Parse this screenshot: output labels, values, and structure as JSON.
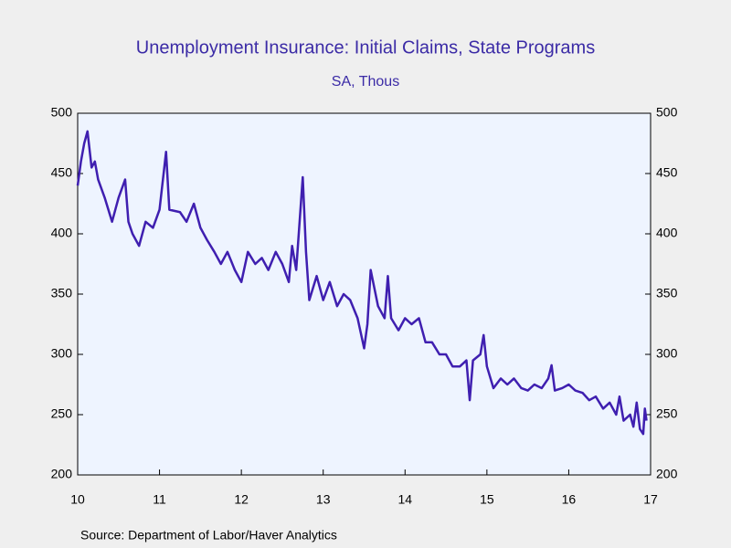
{
  "chart_data": {
    "type": "line",
    "title": "Unemployment Insurance: Initial Claims, State Programs",
    "subtitle": "SA, Thous",
    "source": "Source:  Department of Labor/Haver Analytics",
    "x": [
      10.0,
      10.04,
      10.08,
      10.12,
      10.17,
      10.21,
      10.25,
      10.33,
      10.42,
      10.5,
      10.58,
      10.62,
      10.67,
      10.75,
      10.83,
      10.92,
      11.0,
      11.08,
      11.12,
      11.25,
      11.33,
      11.42,
      11.5,
      11.58,
      11.67,
      11.75,
      11.83,
      11.92,
      12.0,
      12.08,
      12.17,
      12.25,
      12.33,
      12.42,
      12.5,
      12.58,
      12.62,
      12.67,
      12.75,
      12.79,
      12.83,
      12.92,
      13.0,
      13.08,
      13.17,
      13.25,
      13.33,
      13.42,
      13.5,
      13.54,
      13.58,
      13.67,
      13.75,
      13.79,
      13.83,
      13.92,
      14.0,
      14.08,
      14.17,
      14.25,
      14.33,
      14.42,
      14.5,
      14.58,
      14.67,
      14.75,
      14.79,
      14.83,
      14.92,
      14.96,
      15.0,
      15.08,
      15.17,
      15.25,
      15.33,
      15.42,
      15.5,
      15.58,
      15.67,
      15.75,
      15.79,
      15.83,
      15.92,
      16.0,
      16.08,
      16.17,
      16.25,
      16.33,
      16.42,
      16.5,
      16.58,
      16.62,
      16.67,
      16.75,
      16.79,
      16.83,
      16.87,
      16.91,
      16.93,
      16.95
    ],
    "series": [
      {
        "name": "Initial Claims",
        "color": "#3f1fb0",
        "values": [
          440,
          460,
          475,
          485,
          455,
          460,
          445,
          430,
          410,
          430,
          445,
          410,
          400,
          390,
          410,
          405,
          420,
          468,
          420,
          418,
          410,
          425,
          405,
          395,
          385,
          375,
          385,
          370,
          360,
          385,
          375,
          380,
          370,
          385,
          375,
          360,
          390,
          370,
          447,
          385,
          345,
          365,
          345,
          360,
          340,
          350,
          345,
          330,
          305,
          325,
          370,
          340,
          330,
          365,
          330,
          320,
          330,
          325,
          330,
          310,
          310,
          300,
          300,
          290,
          290,
          295,
          262,
          295,
          300,
          316,
          290,
          272,
          280,
          275,
          280,
          272,
          270,
          275,
          272,
          280,
          291,
          270,
          272,
          275,
          270,
          268,
          262,
          265,
          255,
          260,
          250,
          265,
          245,
          250,
          240,
          260,
          238,
          234,
          255,
          245
        ]
      }
    ],
    "xlim": [
      10,
      17
    ],
    "xticks": [
      10,
      11,
      12,
      13,
      14,
      15,
      16,
      17
    ],
    "ylim": [
      200,
      500
    ],
    "yticks": [
      200,
      250,
      300,
      350,
      400,
      450,
      500
    ],
    "y2lim": [
      200,
      500
    ],
    "y2ticks": [
      200,
      250,
      300,
      350,
      400,
      450,
      500
    ]
  }
}
